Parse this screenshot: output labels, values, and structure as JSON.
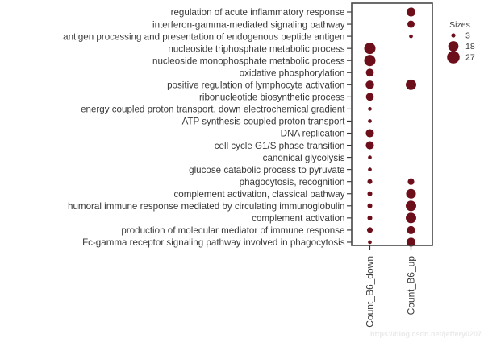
{
  "watermark": "https://blog.csdn.net/jeffery0207",
  "colors": {
    "dot": "#6d0e1b",
    "axis_text": "#383838",
    "tick": "#333333",
    "panel_border": "#474747",
    "watermark": "#eaeaea"
  },
  "chart_data": {
    "type": "scatter",
    "subtype": "bubble-dotplot (GO enrichment)",
    "title": "",
    "xlabel": "",
    "ylabel": "",
    "grid": false,
    "legend_position": "right",
    "categories": [
      "regulation of acute inflammatory response",
      "interferon-gamma-mediated signaling pathway",
      "antigen processing and presentation of endogenous peptide antigen",
      "nucleoside triphosphate metabolic process",
      "nucleoside monophosphate metabolic process",
      "oxidative phosphorylation",
      "positive regulation of lymphocyte activation",
      "ribonucleotide biosynthetic process",
      "energy coupled proton transport, down electrochemical gradient",
      "ATP synthesis coupled proton transport",
      "DNA replication",
      "cell cycle G1/S phase transition",
      "canonical glycolysis",
      "glucose catabolic process to pyruvate",
      "phagocytosis, recognition",
      "complement activation, classical pathway",
      "humoral immune response mediated by circulating immunoglobulin",
      "complement activation",
      "production of molecular mediator of immune response",
      "Fc-gamma receptor signaling pathway involved in phagocytosis"
    ],
    "series": [
      {
        "name": "Count_B6_down",
        "values": [
          null,
          null,
          null,
          27,
          27,
          13,
          15,
          13,
          3,
          3,
          14,
          14,
          3,
          3,
          5,
          5,
          5,
          5,
          7,
          3
        ]
      },
      {
        "name": "Count_B6_up",
        "values": [
          17,
          11,
          3,
          null,
          null,
          null,
          23,
          null,
          null,
          null,
          null,
          null,
          null,
          null,
          9,
          20,
          23,
          23,
          14,
          17
        ]
      }
    ],
    "legend": {
      "title": "Sizes",
      "sizes": [
        3,
        18,
        27
      ]
    },
    "size_encoding": "dot area proportional to count value"
  }
}
